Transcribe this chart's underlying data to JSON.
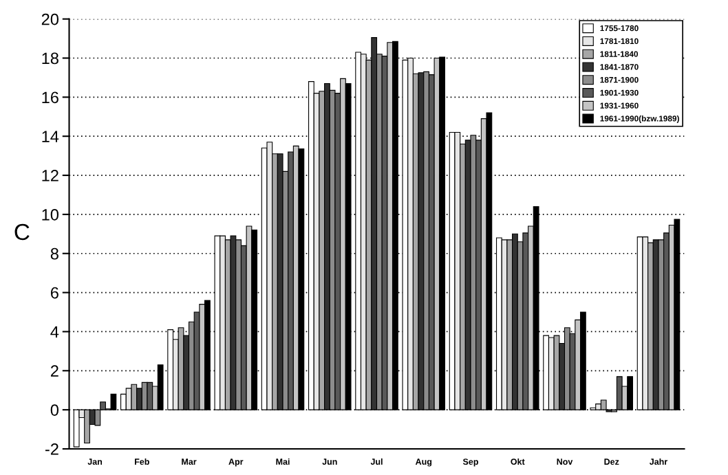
{
  "chart_data": {
    "type": "bar",
    "ylabel": "C",
    "categories": [
      "Jan",
      "Feb",
      "Mar",
      "Apr",
      "Mai",
      "Jun",
      "Jul",
      "Aug",
      "Sep",
      "Okt",
      "Nov",
      "Dez",
      "Jahr"
    ],
    "series": [
      {
        "name": "1755-1780",
        "color": "#ffffff",
        "values": [
          -1.9,
          0.8,
          4.1,
          8.9,
          13.4,
          16.8,
          18.3,
          17.9,
          14.2,
          8.8,
          3.8,
          0.1,
          8.85
        ]
      },
      {
        "name": "1781-1810",
        "color": "#e6e6e6",
        "values": [
          -0.4,
          1.1,
          3.6,
          8.9,
          13.7,
          16.2,
          18.2,
          18.0,
          14.2,
          8.7,
          3.7,
          0.3,
          8.85
        ]
      },
      {
        "name": "1811-1840",
        "color": "#a6a6a6",
        "values": [
          -1.7,
          1.3,
          4.2,
          8.7,
          13.1,
          16.3,
          17.9,
          17.2,
          13.6,
          8.7,
          3.8,
          0.5,
          8.55
        ]
      },
      {
        "name": "1841-1870",
        "color": "#333333",
        "values": [
          -0.75,
          1.1,
          3.8,
          8.9,
          13.1,
          16.7,
          19.05,
          17.25,
          13.8,
          9.0,
          3.4,
          -0.1,
          8.7
        ]
      },
      {
        "name": "1871-1900",
        "color": "#8c8c8c",
        "values": [
          -0.8,
          1.4,
          4.5,
          8.7,
          12.2,
          16.35,
          18.2,
          17.3,
          14.05,
          8.6,
          4.2,
          -0.1,
          8.7
        ]
      },
      {
        "name": "1901-1930",
        "color": "#595959",
        "values": [
          0.4,
          1.4,
          5.0,
          8.4,
          13.2,
          16.2,
          18.1,
          17.15,
          13.8,
          9.05,
          3.9,
          1.7,
          9.05
        ]
      },
      {
        "name": "1931-1960",
        "color": "#c4c4c4",
        "values": [
          0.05,
          1.2,
          5.4,
          9.4,
          13.5,
          16.95,
          18.8,
          18.0,
          14.9,
          9.4,
          4.6,
          1.2,
          9.45
        ]
      },
      {
        "name": "1961-1990(bzw.1989)",
        "color": "#000000",
        "values": [
          0.8,
          2.3,
          5.6,
          9.2,
          13.35,
          16.7,
          18.85,
          18.05,
          15.2,
          10.4,
          5.0,
          1.7,
          9.75
        ]
      }
    ],
    "ylim": [
      -2,
      20
    ],
    "yticks": [
      -2,
      0,
      2,
      4,
      6,
      8,
      10,
      12,
      14,
      16,
      18,
      20
    ],
    "grid": "y",
    "legend": "top right"
  }
}
